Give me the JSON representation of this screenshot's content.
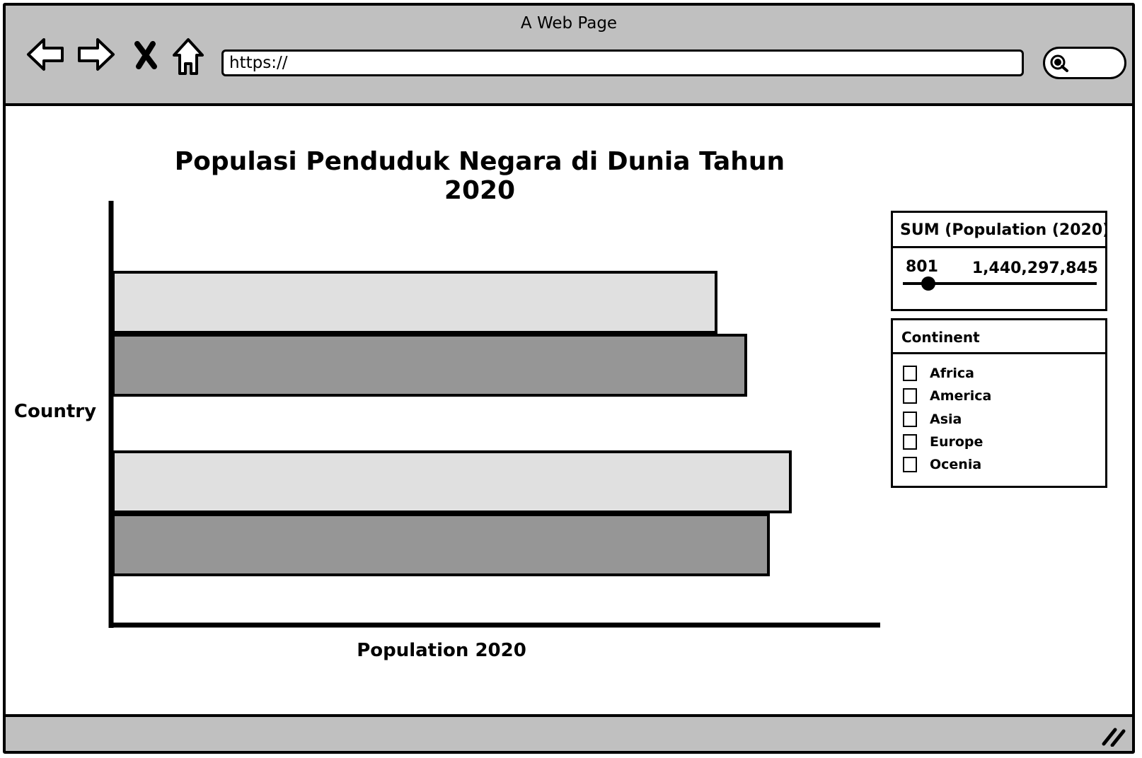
{
  "window": {
    "title": "A Web Page",
    "url": "https://"
  },
  "page": {
    "heading": "Populasi Penduduk Negara di Dunia Tahun 2020"
  },
  "icons": {
    "back": "arrow-left-icon",
    "forward": "arrow-right-icon",
    "stop": "close-icon",
    "home": "home-icon",
    "search": "search-icon",
    "resize": "resize-grip-icon"
  },
  "chart_data": {
    "type": "bar",
    "orientation": "horizontal",
    "title": "",
    "xlabel": "Population 2020",
    "ylabel": "Country",
    "categories": [
      "",
      "",
      "",
      ""
    ],
    "values": [
      0.81,
      0.85,
      0.91,
      0.88
    ],
    "xlim": [
      0,
      1
    ],
    "bar_colors": [
      "#e0e0e0",
      "#969696",
      "#e0e0e0",
      "#969696"
    ],
    "grid": false
  },
  "filters": {
    "sum": {
      "title": "SUM (Population (2020)",
      "min_label": "801",
      "max_label": "1,440,297,845",
      "value_fraction": 0.05
    },
    "continent": {
      "title": "Continent",
      "options": [
        {
          "label": "Africa",
          "checked": false
        },
        {
          "label": "America",
          "checked": false
        },
        {
          "label": "Asia",
          "checked": false
        },
        {
          "label": "Europe",
          "checked": false
        },
        {
          "label": "Ocenia",
          "checked": false
        }
      ]
    }
  }
}
